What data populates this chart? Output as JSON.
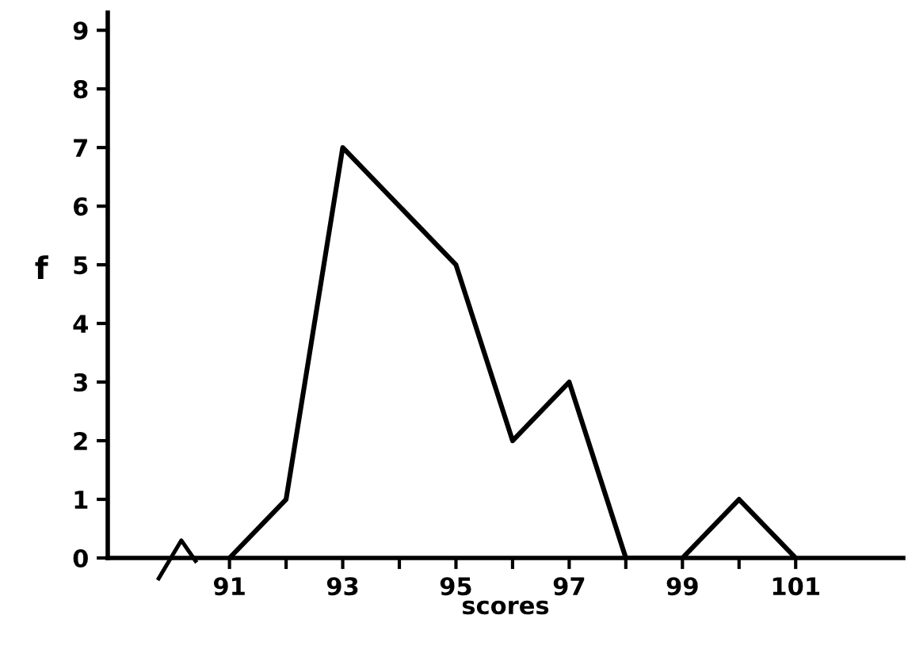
{
  "chart_data": {
    "type": "line",
    "xlabel": "scores",
    "ylabel": "f",
    "x": [
      91,
      92,
      93,
      94,
      95,
      96,
      97,
      98,
      99,
      100,
      101
    ],
    "series": [
      {
        "color": "#000000",
        "values": [
          0,
          1,
          7,
          6,
          5,
          2,
          3,
          0,
          0,
          1,
          0
        ]
      }
    ],
    "xlim": [
      88.85,
      102.9
    ],
    "ylim": [
      0,
      9.3
    ],
    "xticks": [
      91,
      {
        "value": 92,
        "label": null
      },
      93,
      {
        "value": 94,
        "label": null
      },
      95,
      {
        "value": 96,
        "label": null
      },
      97,
      {
        "value": 98,
        "label": null
      },
      99,
      {
        "value": 100,
        "label": null
      },
      101
    ],
    "yticks": [
      0,
      1,
      2,
      3,
      4,
      5,
      6,
      7,
      8,
      9
    ],
    "grid": false,
    "legend": false,
    "marker": "none",
    "line_style": "solid"
  }
}
